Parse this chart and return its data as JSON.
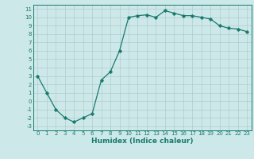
{
  "x": [
    0,
    1,
    2,
    3,
    4,
    5,
    6,
    7,
    8,
    9,
    10,
    11,
    12,
    13,
    14,
    15,
    16,
    17,
    18,
    19,
    20,
    21,
    22,
    23
  ],
  "y": [
    3,
    1,
    -1,
    -2,
    -2.5,
    -2,
    -1.5,
    2.5,
    3.5,
    6,
    10,
    10.2,
    10.3,
    10,
    10.8,
    10.5,
    10.2,
    10.2,
    10,
    9.8,
    9,
    8.7,
    8.6,
    8.3
  ],
  "line_color": "#1a7a6e",
  "marker": "D",
  "marker_size": 1.8,
  "background_color": "#cce8e8",
  "grid_color": "#b0cccc",
  "xlabel": "Humidex (Indice chaleur)",
  "ylim": [
    -3.5,
    11.5
  ],
  "xlim": [
    -0.5,
    23.5
  ],
  "yticks": [
    -3,
    -2,
    -1,
    0,
    1,
    2,
    3,
    4,
    5,
    6,
    7,
    8,
    9,
    10,
    11
  ],
  "xticks": [
    0,
    1,
    2,
    3,
    4,
    5,
    6,
    7,
    8,
    9,
    10,
    11,
    12,
    13,
    14,
    15,
    16,
    17,
    18,
    19,
    20,
    21,
    22,
    23
  ],
  "tick_label_size": 5.0,
  "xlabel_size": 6.5,
  "linewidth": 0.9
}
